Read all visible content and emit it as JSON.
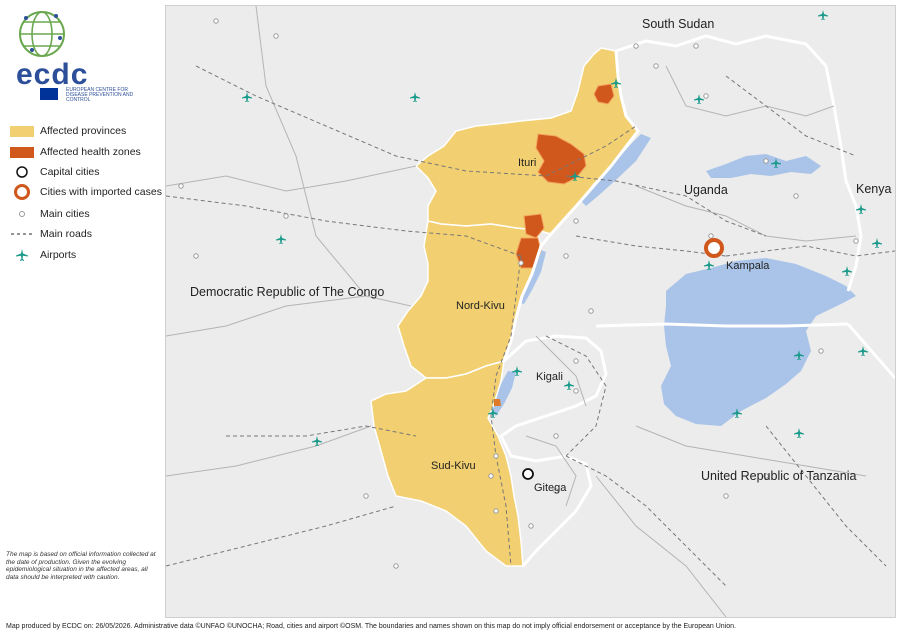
{
  "logo": {
    "text": "ecdc",
    "subtitle": "EUROPEAN CENTRE FOR DISEASE PREVENTION AND CONTROL"
  },
  "legend": {
    "items": [
      {
        "label": "Affected provinces",
        "icon": "filled-rect-yellow",
        "color": "#f2cf70"
      },
      {
        "label": "Affected health zones",
        "icon": "filled-rect-orange",
        "color": "#d0581c"
      },
      {
        "label": "Capital cities",
        "icon": "open-circle-black"
      },
      {
        "label": "Cities with imported cases",
        "icon": "open-circle-orange",
        "color": "#d0581c"
      },
      {
        "label": "Main cities",
        "icon": "small-open-circle-grey"
      },
      {
        "label": "Main roads",
        "icon": "dashed-line"
      },
      {
        "label": "Airports",
        "icon": "airport-icon",
        "color": "#1a9a8a"
      }
    ]
  },
  "map": {
    "countries": {
      "drc": "Democratic Republic of The Congo",
      "south_sudan": "South Sudan",
      "uganda": "Uganda",
      "kenya": "Kenya",
      "tanzania": "United Republic of Tanzania"
    },
    "provinces": {
      "ituri": "Ituri",
      "nord_kivu": "Nord-Kivu",
      "sud_kivu": "Sud-Kivu"
    },
    "capitals": {
      "kampala": "Kampala",
      "kigali": "Kigali",
      "gitega": "Gitega"
    },
    "colors": {
      "province": "#f2cf70",
      "health_zone": "#d0581c",
      "water": "#a9c4e8",
      "land": "#ececec",
      "airport": "#1a9a8a"
    }
  },
  "disclaimer": "The map is based on official information collected at the date of production. Given the evolving epidemiological situation in the affected areas, all data should be interpreted with caution.",
  "footer": "Map produced by ECDC on: 26/05/2026. Administrative data ©UNFAO  ©UNOCHA;  Road, cities and airport ©OSM. The boundaries and names shown on this map do not imply official endorsement or acceptance by the European Union."
}
